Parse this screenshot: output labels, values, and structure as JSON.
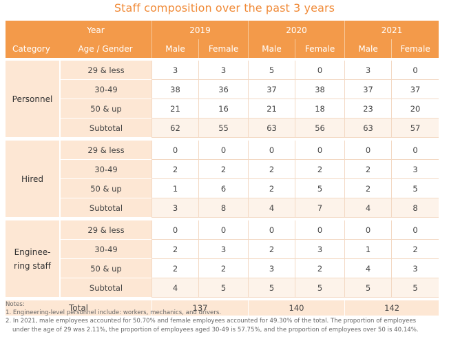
{
  "title": "Staff composition over the past 3 years",
  "header": {
    "year_label": "Year",
    "category_label": "Category",
    "age_gender_label": "Age / Gender",
    "years": [
      "2019",
      "2020",
      "2021"
    ],
    "male_label": "Male",
    "female_label": "Female"
  },
  "groups": [
    {
      "category_lines": [
        "Personnel"
      ],
      "rows": [
        {
          "age": "29 & less",
          "values": [
            "3",
            "3",
            "5",
            "0",
            "3",
            "0"
          ]
        },
        {
          "age": "30-49",
          "values": [
            "38",
            "36",
            "37",
            "38",
            "37",
            "37"
          ]
        },
        {
          "age": "50 & up",
          "values": [
            "21",
            "16",
            "21",
            "18",
            "23",
            "20"
          ]
        },
        {
          "age": "Subtotal",
          "values": [
            "62",
            "55",
            "63",
            "56",
            "63",
            "57"
          ]
        }
      ]
    },
    {
      "category_lines": [
        "Hired"
      ],
      "rows": [
        {
          "age": "29 & less",
          "values": [
            "0",
            "0",
            "0",
            "0",
            "0",
            "0"
          ]
        },
        {
          "age": "30-49",
          "values": [
            "2",
            "2",
            "2",
            "2",
            "2",
            "3"
          ]
        },
        {
          "age": "50 & up",
          "values": [
            "1",
            "6",
            "2",
            "5",
            "2",
            "5"
          ]
        },
        {
          "age": "Subtotal",
          "values": [
            "3",
            "8",
            "4",
            "7",
            "4",
            "8"
          ]
        }
      ]
    },
    {
      "category_lines": [
        "Enginee-",
        "ring staff"
      ],
      "rows": [
        {
          "age": "29 & less",
          "values": [
            "0",
            "0",
            "0",
            "0",
            "0",
            "0"
          ]
        },
        {
          "age": "30-49",
          "values": [
            "2",
            "3",
            "2",
            "3",
            "1",
            "2"
          ]
        },
        {
          "age": "50 & up",
          "values": [
            "2",
            "2",
            "3",
            "2",
            "4",
            "3"
          ]
        },
        {
          "age": "Subtotal",
          "values": [
            "4",
            "5",
            "5",
            "5",
            "5",
            "5"
          ]
        }
      ]
    }
  ],
  "total": {
    "label": "Total",
    "values": [
      "137",
      "140",
      "142"
    ]
  },
  "notes": {
    "heading": "Notes:",
    "line1": "1. Engineering-level personnel include: workers, mechanics, and drivers.",
    "line2a": "2. In 2021, male employees accounted for 50.70% and female employees accounted for 49.30% of the total. The proportion of employees",
    "line2b": "under the age of 29 was 2.11%, the proportion of employees aged 30-49 is 57.75%, and the proportion of employees over 50 is 40.14%."
  }
}
